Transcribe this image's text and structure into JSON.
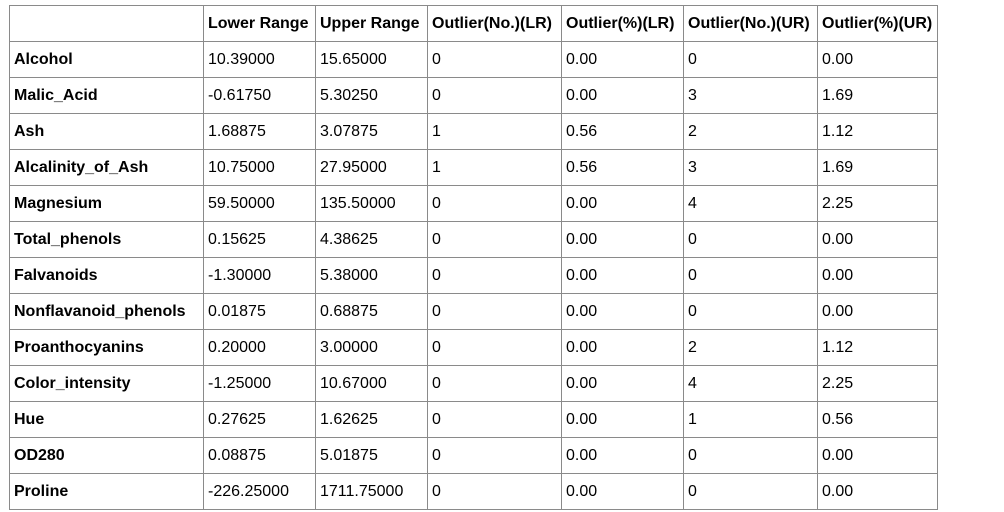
{
  "table": {
    "columns": [
      "",
      "Lower Range",
      "Upper Range",
      "Outlier(No.)(LR)",
      "Outlier(%)(LR)",
      "Outlier(No.)(UR)",
      "Outlier(%)(UR)"
    ],
    "rows": [
      [
        "Alcohol",
        "10.39000",
        "15.65000",
        "0",
        "0.00",
        "0",
        "0.00"
      ],
      [
        "Malic_Acid",
        "-0.61750",
        "5.30250",
        "0",
        "0.00",
        "3",
        "1.69"
      ],
      [
        "Ash",
        "1.68875",
        "3.07875",
        "1",
        "0.56",
        "2",
        "1.12"
      ],
      [
        "Alcalinity_of_Ash",
        "10.75000",
        "27.95000",
        "1",
        "0.56",
        "3",
        "1.69"
      ],
      [
        "Magnesium",
        "59.50000",
        "135.50000",
        "0",
        "0.00",
        "4",
        "2.25"
      ],
      [
        "Total_phenols",
        "0.15625",
        "4.38625",
        "0",
        "0.00",
        "0",
        "0.00"
      ],
      [
        "Falvanoids",
        "-1.30000",
        "5.38000",
        "0",
        "0.00",
        "0",
        "0.00"
      ],
      [
        "Nonflavanoid_phenols",
        "0.01875",
        "0.68875",
        "0",
        "0.00",
        "0",
        "0.00"
      ],
      [
        "Proanthocyanins",
        "0.20000",
        "3.00000",
        "0",
        "0.00",
        "2",
        "1.12"
      ],
      [
        "Color_intensity",
        "-1.25000",
        "10.67000",
        "0",
        "0.00",
        "4",
        "2.25"
      ],
      [
        "Hue",
        "0.27625",
        "1.62625",
        "0",
        "0.00",
        "1",
        "0.56"
      ],
      [
        "OD280",
        "0.08875",
        "5.01875",
        "0",
        "0.00",
        "0",
        "0.00"
      ],
      [
        "Proline",
        "-226.25000",
        "1711.75000",
        "0",
        "0.00",
        "0",
        "0.00"
      ]
    ]
  }
}
